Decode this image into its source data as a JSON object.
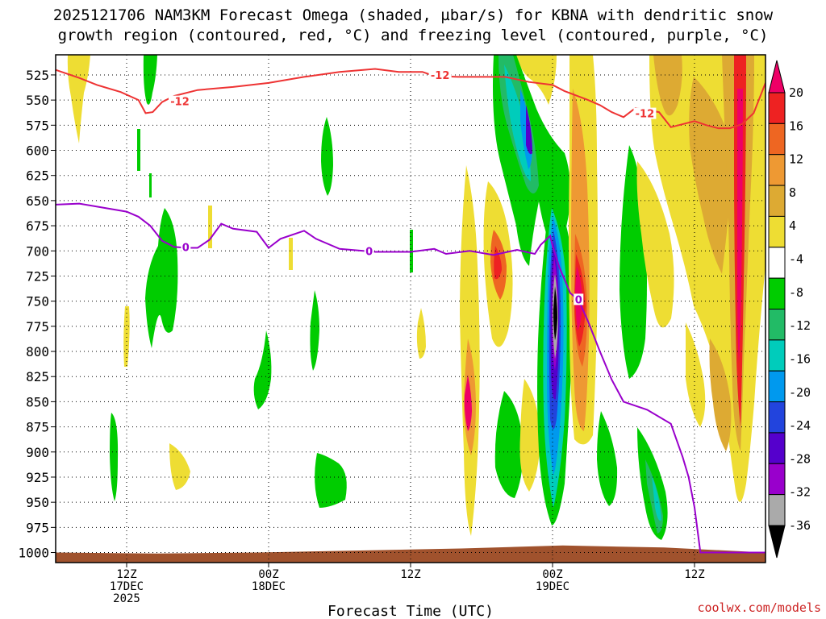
{
  "title": {
    "line1": "2025121706 NAM3KM Forecast Omega (shaded, µbar/s) for KBNA with dendritic snow",
    "line2": "growth region (contoured, red, °C) and freezing level (contoured, purple, °C)"
  },
  "credit": "coolwx.com/models",
  "chart_data": {
    "type": "heatmap",
    "title": "2025121706 NAM3KM Forecast Omega (shaded, µbar/s) for KBNA with dendritic snow growth region (contoured, red, °C) and freezing level (contoured, purple, °C)",
    "xlabel": "Forecast Time (UTC)",
    "ylabel": "",
    "x_range_hours": [
      0,
      60
    ],
    "y_range_mb": [
      505,
      1010
    ],
    "y_ticks": [
      525,
      550,
      575,
      600,
      625,
      650,
      675,
      700,
      725,
      750,
      775,
      800,
      825,
      850,
      875,
      900,
      925,
      950,
      975,
      1000
    ],
    "x_ticks": [
      {
        "hour": 6,
        "lines": [
          "12Z",
          "17DEC",
          "2025"
        ]
      },
      {
        "hour": 18,
        "lines": [
          "00Z",
          "18DEC"
        ]
      },
      {
        "hour": 30,
        "lines": [
          "12Z"
        ]
      },
      {
        "hour": 42,
        "lines": [
          "00Z",
          "19DEC"
        ]
      },
      {
        "hour": 54,
        "lines": [
          "12Z"
        ]
      }
    ],
    "colorbar": {
      "labels": [
        "20",
        "16",
        "12",
        "8",
        "4",
        "-4",
        "-8",
        "-12",
        "-16",
        "-20",
        "-24",
        "-28",
        "-32",
        "-36"
      ],
      "colors": [
        "#ee0066",
        "#ee2222",
        "#ee6622",
        "#ee9933",
        "#ddaa33",
        "#eedd33",
        "#ffffff",
        "#00cc00",
        "#22bb66",
        "#00ccbb",
        "#0099ee",
        "#2244dd",
        "#5500cc",
        "#9900cc",
        "#aaaaaa"
      ]
    },
    "freezing_level_label": "0",
    "dgz_label": "-12",
    "dgz_contour_12": [
      [
        0,
        520
      ],
      [
        2,
        528
      ],
      [
        3.5,
        535
      ],
      [
        5.5,
        542
      ],
      [
        7,
        550
      ],
      [
        7.6,
        563
      ],
      [
        8.2,
        562
      ],
      [
        9,
        552
      ],
      [
        10,
        546
      ],
      [
        12,
        540
      ],
      [
        15,
        537
      ],
      [
        18,
        533
      ],
      [
        21,
        527
      ],
      [
        24,
        522
      ],
      [
        27,
        519
      ],
      [
        29,
        522
      ],
      [
        31,
        522
      ],
      [
        32,
        526
      ],
      [
        34,
        527
      ],
      [
        38,
        527
      ],
      [
        40,
        532
      ],
      [
        42,
        535
      ],
      [
        43,
        541
      ],
      [
        45,
        550
      ],
      [
        46,
        555
      ],
      [
        47,
        562
      ],
      [
        48,
        567
      ],
      [
        49,
        558
      ],
      [
        50,
        560
      ],
      [
        51,
        562
      ],
      [
        52,
        577
      ],
      [
        54,
        571
      ],
      [
        55,
        575
      ],
      [
        56,
        578
      ],
      [
        57,
        578
      ],
      [
        58,
        574
      ],
      [
        59,
        563
      ],
      [
        60,
        533
      ]
    ],
    "freezing_level_0": [
      [
        0,
        654
      ],
      [
        2,
        653
      ],
      [
        4,
        657
      ],
      [
        6,
        661
      ],
      [
        7,
        666
      ],
      [
        8,
        675
      ],
      [
        9,
        690
      ],
      [
        10,
        696
      ],
      [
        11,
        697
      ],
      [
        12,
        697
      ],
      [
        13,
        689
      ],
      [
        14,
        673
      ],
      [
        15,
        678
      ],
      [
        17,
        681
      ],
      [
        18,
        697
      ],
      [
        19,
        688
      ],
      [
        21,
        680
      ],
      [
        22,
        688
      ],
      [
        24,
        698
      ],
      [
        27,
        701
      ],
      [
        30,
        701
      ],
      [
        32,
        698
      ],
      [
        33,
        703
      ],
      [
        35,
        700
      ],
      [
        37,
        704
      ],
      [
        39,
        699
      ],
      [
        40.5,
        703
      ],
      [
        41,
        694
      ],
      [
        41.8,
        685
      ],
      [
        42,
        695
      ],
      [
        42.6,
        717
      ],
      [
        43.5,
        742
      ],
      [
        44.2,
        749
      ],
      [
        45,
        770
      ],
      [
        46,
        800
      ],
      [
        47,
        828
      ],
      [
        48,
        850
      ],
      [
        50,
        858
      ],
      [
        52,
        872
      ],
      [
        53,
        905
      ],
      [
        53.5,
        925
      ],
      [
        54,
        955
      ],
      [
        54.5,
        1000
      ],
      [
        55,
        1000
      ],
      [
        60,
        1000
      ]
    ],
    "omega_blobs": [
      {
        "time": 1.5,
        "level": 540,
        "value": 4
      },
      {
        "time": 7.5,
        "level": 560,
        "value": -4
      },
      {
        "time": 7.5,
        "level": 710,
        "value": -8
      },
      {
        "time": 8.5,
        "level": 660,
        "value": -8
      },
      {
        "time": 5.5,
        "level": 860,
        "value": -8
      },
      {
        "time": 9.5,
        "level": 885,
        "value": 4
      },
      {
        "time": 17,
        "level": 795,
        "value": -8
      },
      {
        "time": 22.5,
        "level": 570,
        "value": -8
      },
      {
        "time": 22.2,
        "level": 905,
        "value": -8
      },
      {
        "time": 35,
        "level": 810,
        "value": 16
      },
      {
        "time": 36.5,
        "level": 680,
        "value": 16
      },
      {
        "time": 37.5,
        "level": 870,
        "value": -8
      },
      {
        "time": 40,
        "level": 560,
        "value": -20
      },
      {
        "time": 42,
        "level": 700,
        "value": -32
      },
      {
        "time": 42.2,
        "level": 800,
        "value": -24
      },
      {
        "time": 44,
        "level": 700,
        "value": 20
      },
      {
        "time": 44,
        "level": 600,
        "value": 12
      },
      {
        "time": 46.5,
        "level": 880,
        "value": -8
      },
      {
        "time": 48.5,
        "level": 640,
        "value": -8
      },
      {
        "time": 51,
        "level": 900,
        "value": -16
      },
      {
        "time": 53.5,
        "level": 620,
        "value": 8
      },
      {
        "time": 56.5,
        "level": 620,
        "value": 8
      },
      {
        "time": 58,
        "level": 580,
        "value": 20
      },
      {
        "time": 58,
        "level": 760,
        "value": 16
      },
      {
        "time": 58.5,
        "level": 900,
        "value": 8
      }
    ],
    "terrain_mb": [
      1000,
      1001,
      1000,
      998,
      996,
      993,
      995,
      1000
    ]
  }
}
